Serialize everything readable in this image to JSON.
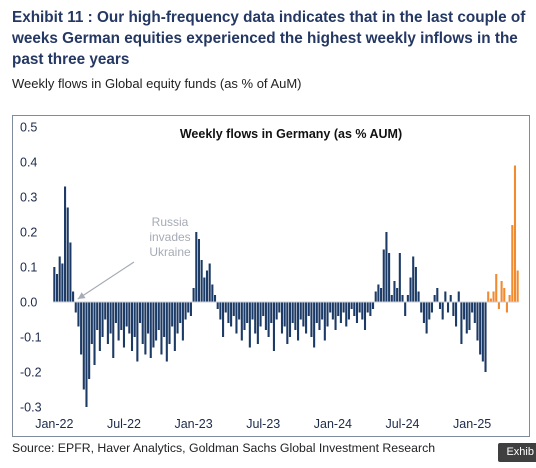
{
  "exhibit": {
    "title": "Exhibit 11 : Our high-frequency data indicates that in the last couple of weeks German equities experienced the highest weekly inflows in the past three years",
    "subtitle": "Weekly flows in Global equity funds (as % of AuM)",
    "source": "Source: EPFR, Haver Analytics, Goldman Sachs Global Investment Research",
    "watermark": "Exhib"
  },
  "colors": {
    "bars": "#1c3a66",
    "recent_bars": "#f28a2f",
    "annotation": "#a6abb5"
  },
  "chart_data": {
    "type": "bar",
    "title": "Weekly flows in Germany (as %  AUM)",
    "xlabel": "",
    "ylabel": "",
    "ylim": [
      -0.3,
      0.5
    ],
    "yticks": [
      "0.5",
      "0.4",
      "0.3",
      "0.2",
      "0.1",
      "0.0",
      "-0.1",
      "-0.2",
      "-0.3"
    ],
    "ytick_values": [
      0.5,
      0.4,
      0.3,
      0.2,
      0.1,
      0.0,
      -0.1,
      -0.2,
      -0.3
    ],
    "xticks": [
      "Jan-22",
      "Jul-22",
      "Jan-23",
      "Jul-23",
      "Jan-24",
      "Jul-24",
      "Jan-25"
    ],
    "xtick_week_index": [
      0,
      26,
      52,
      78,
      104,
      130,
      156
    ],
    "grid": false,
    "legend": "none",
    "annotations": [
      {
        "text_lines": [
          "Russia",
          "invades",
          "Ukraine"
        ],
        "points_to_week": 8
      }
    ],
    "series": [
      {
        "highlight_from_week": 162,
        "values": [
          0.1,
          0.08,
          0.13,
          0.11,
          0.33,
          0.27,
          0.17,
          0.03,
          -0.03,
          -0.07,
          -0.15,
          -0.25,
          -0.3,
          -0.22,
          -0.12,
          -0.18,
          -0.08,
          -0.14,
          -0.1,
          -0.05,
          -0.12,
          -0.09,
          -0.16,
          -0.06,
          -0.11,
          -0.08,
          -0.13,
          -0.07,
          -0.09,
          -0.14,
          -0.1,
          -0.17,
          -0.06,
          -0.12,
          -0.15,
          -0.09,
          -0.16,
          -0.13,
          -0.11,
          -0.08,
          -0.15,
          -0.1,
          -0.17,
          -0.12,
          -0.07,
          -0.14,
          -0.09,
          -0.06,
          -0.11,
          -0.05,
          -0.03,
          -0.04,
          0.04,
          0.2,
          0.18,
          0.12,
          0.07,
          0.09,
          0.11,
          0.05,
          0.02,
          -0.02,
          -0.05,
          -0.1,
          -0.03,
          -0.06,
          -0.07,
          -0.04,
          -0.09,
          -0.05,
          -0.11,
          -0.08,
          -0.06,
          -0.13,
          -0.05,
          -0.09,
          -0.12,
          -0.07,
          -0.04,
          -0.08,
          -0.1,
          -0.06,
          -0.14,
          -0.05,
          -0.03,
          -0.09,
          -0.07,
          -0.12,
          -0.1,
          -0.06,
          -0.08,
          -0.11,
          -0.05,
          -0.07,
          -0.09,
          -0.04,
          -0.1,
          -0.13,
          -0.06,
          -0.08,
          -0.05,
          -0.11,
          -0.07,
          -0.03,
          -0.05,
          -0.08,
          -0.04,
          -0.06,
          -0.03,
          -0.07,
          -0.05,
          -0.02,
          -0.04,
          -0.06,
          -0.03,
          -0.05,
          -0.08,
          -0.03,
          -0.04,
          -0.02,
          0.03,
          0.05,
          0.04,
          0.15,
          0.2,
          0.14,
          0.02,
          0.06,
          0.04,
          0.14,
          0.02,
          -0.04,
          0.02,
          0.07,
          0.13,
          0.1,
          0.03,
          -0.03,
          -0.06,
          -0.09,
          -0.05,
          -0.03,
          0.02,
          0.04,
          -0.02,
          -0.05,
          0.03,
          -0.03,
          0.02,
          -0.04,
          -0.07,
          0.03,
          -0.12,
          -0.05,
          -0.09,
          -0.08,
          -0.03,
          -0.06,
          -0.11,
          -0.15,
          -0.17,
          -0.2,
          0.03,
          0.01,
          0.03,
          0.08,
          -0.02,
          0.06,
          0.04,
          -0.03,
          0.02,
          0.22,
          0.39,
          0.09
        ]
      }
    ]
  }
}
